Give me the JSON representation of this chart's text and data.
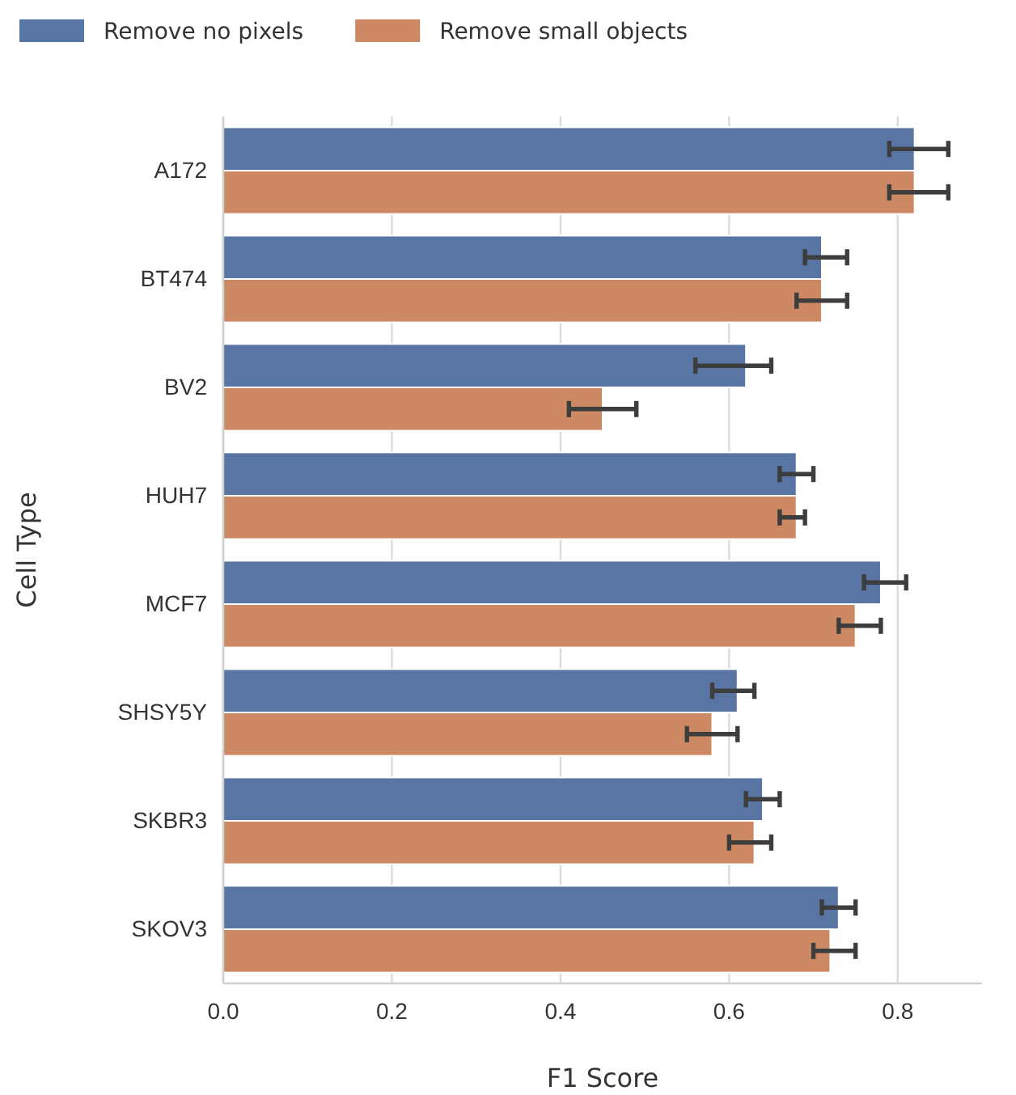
{
  "chart_data": {
    "type": "bar",
    "orientation": "horizontal",
    "xlabel": "F1 Score",
    "ylabel": "Cell Type",
    "categories": [
      "A172",
      "BT474",
      "BV2",
      "HUH7",
      "MCF7",
      "SHSY5Y",
      "SKBR3",
      "SKOV3"
    ],
    "series": [
      {
        "name": "Remove no pixels",
        "color": "#5975a4",
        "values": [
          0.82,
          0.71,
          0.62,
          0.68,
          0.78,
          0.61,
          0.64,
          0.73
        ],
        "errors": [
          [
            0.79,
            0.86
          ],
          [
            0.69,
            0.74
          ],
          [
            0.56,
            0.65
          ],
          [
            0.66,
            0.7
          ],
          [
            0.76,
            0.81
          ],
          [
            0.58,
            0.63
          ],
          [
            0.62,
            0.66
          ],
          [
            0.71,
            0.75
          ]
        ]
      },
      {
        "name": "Remove small objects",
        "color": "#cc8963",
        "values": [
          0.82,
          0.71,
          0.45,
          0.68,
          0.75,
          0.58,
          0.63,
          0.72
        ],
        "errors": [
          [
            0.79,
            0.86
          ],
          [
            0.68,
            0.74
          ],
          [
            0.41,
            0.49
          ],
          [
            0.66,
            0.69
          ],
          [
            0.73,
            0.78
          ],
          [
            0.55,
            0.61
          ],
          [
            0.6,
            0.65
          ],
          [
            0.7,
            0.75
          ]
        ]
      }
    ],
    "xlim": [
      0,
      0.9
    ],
    "xticks": [
      {
        "value": 0,
        "label": "0.0"
      },
      {
        "value": 0.2,
        "label": "0.2"
      },
      {
        "value": 0.4,
        "label": "0.4"
      },
      {
        "value": 0.6,
        "label": "0.6"
      },
      {
        "value": 0.8,
        "label": "0.8"
      }
    ],
    "grid": "x",
    "legend": "top"
  }
}
